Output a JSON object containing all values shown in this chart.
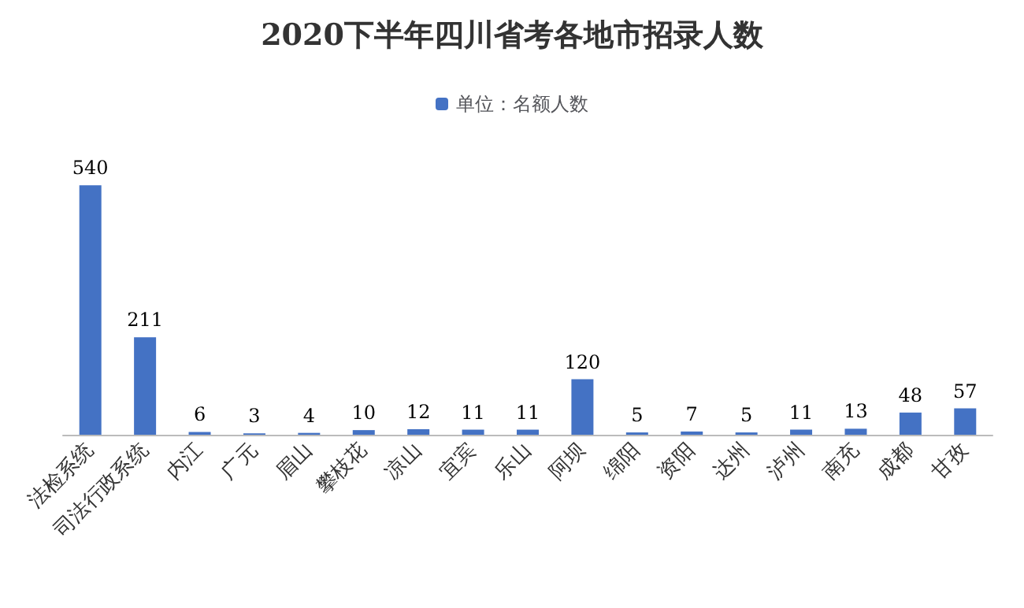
{
  "chart_data": {
    "type": "bar",
    "title": "2020下半年四川省考各地市招录人数",
    "categories": [
      "法检系统",
      "司法行政系统",
      "内江",
      "广元",
      "眉山",
      "攀枝花",
      "凉山",
      "宜宾",
      "乐山",
      "阿坝",
      "绵阳",
      "资阳",
      "达州",
      "泸州",
      "南充",
      "成都",
      "甘孜"
    ],
    "series": [
      {
        "name": "单位：名额人数",
        "color": "#4472c4",
        "values": [
          540,
          211,
          6,
          3,
          4,
          10,
          12,
          11,
          11,
          120,
          5,
          7,
          5,
          11,
          13,
          48,
          57
        ]
      }
    ],
    "data_labels": true,
    "legend": "top"
  }
}
